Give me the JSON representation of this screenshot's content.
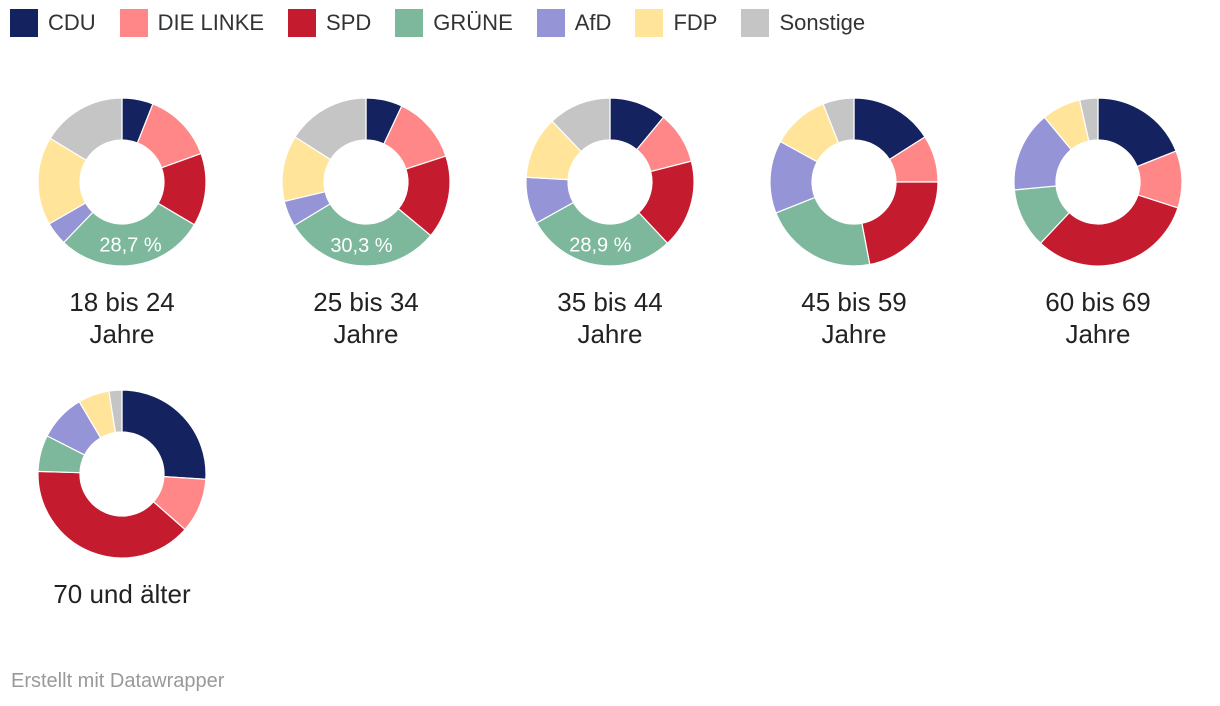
{
  "legend": [
    {
      "name": "CDU",
      "color": "#14235f"
    },
    {
      "name": "DIE LINKE",
      "color": "#ff8787"
    },
    {
      "name": "SPD",
      "color": "#c51b2e"
    },
    {
      "name": "GRÜNE",
      "color": "#7db89d"
    },
    {
      "name": "AfD",
      "color": "#9494d6"
    },
    {
      "name": "FDP",
      "color": "#ffe49a"
    },
    {
      "name": "Sonstige",
      "color": "#c5c5c5"
    }
  ],
  "chart_data": [
    {
      "type": "pie",
      "title_lines": [
        "18 bis 24",
        "Jahre"
      ],
      "label": "28,7 %",
      "label_party": "GRÜNE",
      "values": {
        "CDU": 6.0,
        "DIE LINKE": 13.5,
        "SPD": 14.0,
        "GRÜNE": 28.7,
        "AfD": 4.5,
        "FDP": 17.0,
        "Sonstige": 16.3
      }
    },
    {
      "type": "pie",
      "title_lines": [
        "25 bis 34",
        "Jahre"
      ],
      "label": "30,3 %",
      "label_party": "GRÜNE",
      "values": {
        "CDU": 7.0,
        "DIE LINKE": 13.0,
        "SPD": 16.0,
        "GRÜNE": 30.3,
        "AfD": 5.0,
        "FDP": 12.7,
        "Sonstige": 16.0
      }
    },
    {
      "type": "pie",
      "title_lines": [
        "35 bis 44",
        "Jahre"
      ],
      "label": "28,9 %",
      "label_party": "GRÜNE",
      "values": {
        "CDU": 11.0,
        "DIE LINKE": 10.0,
        "SPD": 17.0,
        "GRÜNE": 28.9,
        "AfD": 9.0,
        "FDP": 12.0,
        "Sonstige": 12.1
      }
    },
    {
      "type": "pie",
      "title_lines": [
        "45 bis 59",
        "Jahre"
      ],
      "label": "",
      "label_party": "",
      "values": {
        "CDU": 16.0,
        "DIE LINKE": 9.0,
        "SPD": 22.0,
        "GRÜNE": 22.0,
        "AfD": 14.0,
        "FDP": 11.0,
        "Sonstige": 6.0
      }
    },
    {
      "type": "pie",
      "title_lines": [
        "60 bis 69",
        "Jahre"
      ],
      "label": "",
      "label_party": "",
      "values": {
        "CDU": 19.0,
        "DIE LINKE": 11.0,
        "SPD": 32.0,
        "GRÜNE": 11.5,
        "AfD": 15.5,
        "FDP": 7.5,
        "Sonstige": 3.5
      }
    },
    {
      "type": "pie",
      "title_lines": [
        "70 und älter"
      ],
      "label": "",
      "label_party": "",
      "values": {
        "CDU": 26.0,
        "DIE LINKE": 10.5,
        "SPD": 39.0,
        "GRÜNE": 7.0,
        "AfD": 9.0,
        "FDP": 6.0,
        "Sonstige": 2.5
      }
    }
  ],
  "footer": "Erstellt mit Datawrapper"
}
